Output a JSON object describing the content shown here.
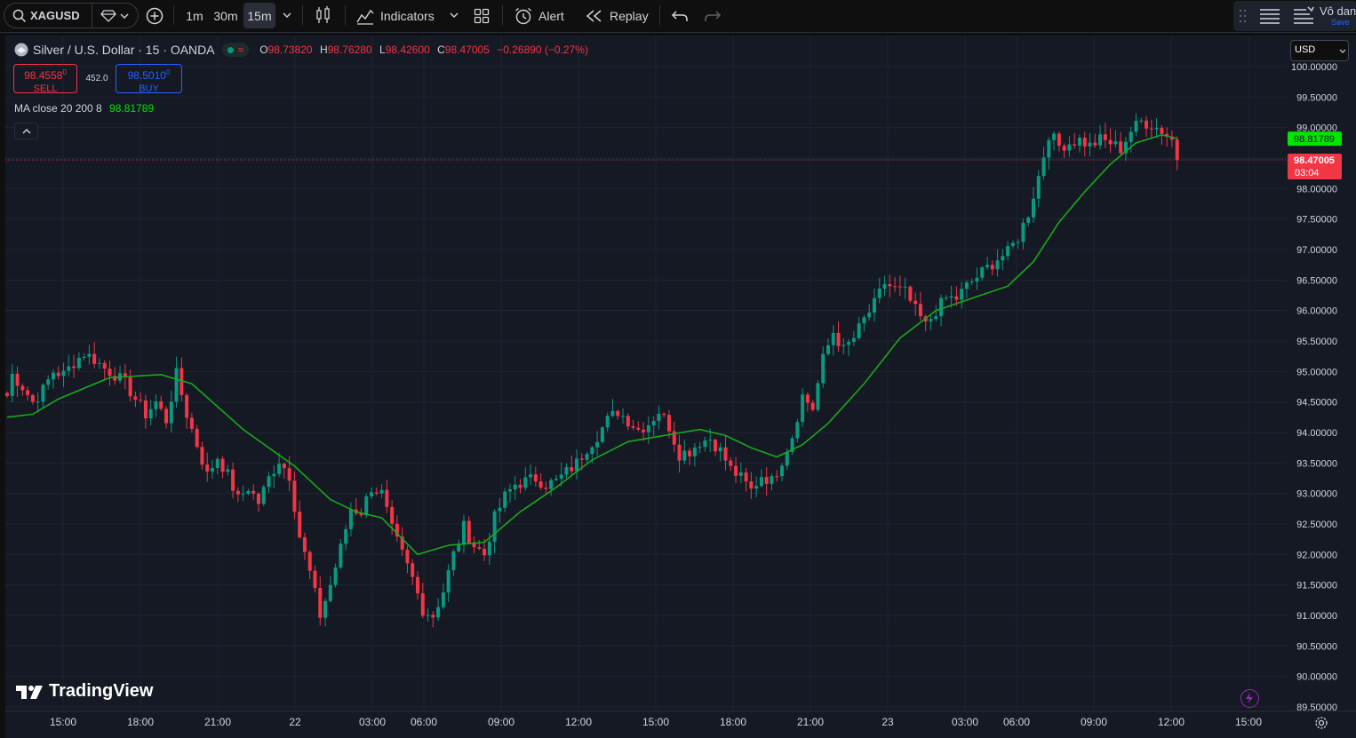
{
  "toolbar": {
    "symbol": "XAGUSD",
    "intervals": [
      "1m",
      "30m",
      "15m"
    ],
    "indicators_label": "Indicators",
    "alert_label": "Alert",
    "replay_label": "Replay",
    "account_name": "Vô dan",
    "save_label": "Save"
  },
  "legend": {
    "title": "Silver / U.S. Dollar · 15 · OANDA",
    "o_label": "O",
    "o_value": "98.73820",
    "h_label": "H",
    "h_value": "98.76280",
    "l_label": "L",
    "l_value": "98.42600",
    "c_label": "C",
    "c_value": "98.47005",
    "change": "−0.26890 (−0.27%)",
    "sell_price": "98.4558",
    "sell_price_sup": "0",
    "sell_label": "SELL",
    "spread": "452.0",
    "buy_price": "98.5010",
    "buy_price_sup": "0",
    "buy_label": "BUY",
    "ma_label": "MA close 20 200 8",
    "ma_value": "98.81789"
  },
  "currency": "USD",
  "logo_text": "TradingView",
  "colors": {
    "up": "#089981",
    "down": "#f23645",
    "ma": "#19a81b",
    "background": "#151924"
  },
  "chart_data": {
    "type": "candlestick",
    "ylim": [
      89.5,
      100.0
    ],
    "yticks": [
      "100.00000",
      "99.50000",
      "99.00000",
      "98.50000",
      "98.00000",
      "97.50000",
      "97.00000",
      "96.50000",
      "96.00000",
      "95.50000",
      "95.00000",
      "94.50000",
      "94.00000",
      "93.50000",
      "93.00000",
      "92.50000",
      "92.00000",
      "91.50000",
      "91.00000",
      "90.50000",
      "90.00000",
      "89.50000"
    ],
    "xticks": [
      "15:00",
      "18:00",
      "21:00",
      "22",
      "03:00",
      "06:00",
      "09:00",
      "12:00",
      "15:00",
      "18:00",
      "21:00",
      "23",
      "03:00",
      "06:00",
      "09:00",
      "12:00",
      "15:00"
    ],
    "last_price": "98.47005",
    "countdown": "03:04",
    "ma_last": "98.81789",
    "price_path": [
      [
        0,
        94.6
      ],
      [
        1,
        94.95
      ],
      [
        3,
        94.75
      ],
      [
        5,
        94.5
      ],
      [
        7,
        94.7
      ],
      [
        9,
        95.0
      ],
      [
        11,
        94.95
      ],
      [
        13,
        95.15
      ],
      [
        15,
        95.3
      ],
      [
        17,
        95.2
      ],
      [
        19,
        95.05
      ],
      [
        21,
        94.95
      ],
      [
        23,
        94.8
      ],
      [
        25,
        94.55
      ],
      [
        27,
        94.3
      ],
      [
        29,
        94.5
      ],
      [
        31,
        94.2
      ],
      [
        33,
        94.95
      ],
      [
        35,
        94.3
      ],
      [
        37,
        93.8
      ],
      [
        39,
        93.3
      ],
      [
        41,
        93.6
      ],
      [
        43,
        93.3
      ],
      [
        45,
        92.9
      ],
      [
        47,
        93.1
      ],
      [
        49,
        92.85
      ],
      [
        51,
        93.25
      ],
      [
        53,
        93.55
      ],
      [
        55,
        93.3
      ],
      [
        57,
        92.3
      ],
      [
        59,
        91.7
      ],
      [
        61,
        91.0
      ],
      [
        63,
        91.5
      ],
      [
        65,
        92.1
      ],
      [
        67,
        92.75
      ],
      [
        69,
        92.7
      ],
      [
        71,
        93.1
      ],
      [
        73,
        93.0
      ],
      [
        75,
        92.4
      ],
      [
        77,
        92.0
      ],
      [
        79,
        91.6
      ],
      [
        81,
        91.1
      ],
      [
        83,
        91.0
      ],
      [
        85,
        91.4
      ],
      [
        87,
        92.0
      ],
      [
        89,
        92.45
      ],
      [
        91,
        92.15
      ],
      [
        93,
        92.0
      ],
      [
        95,
        92.6
      ],
      [
        97,
        92.95
      ],
      [
        99,
        93.15
      ],
      [
        101,
        93.2
      ],
      [
        103,
        93.25
      ],
      [
        105,
        93.15
      ],
      [
        107,
        93.2
      ],
      [
        109,
        93.35
      ],
      [
        111,
        93.5
      ],
      [
        113,
        93.75
      ],
      [
        115,
        93.95
      ],
      [
        117,
        94.2
      ],
      [
        119,
        94.35
      ],
      [
        121,
        94.2
      ],
      [
        123,
        94.05
      ],
      [
        125,
        94.15
      ],
      [
        127,
        94.35
      ],
      [
        129,
        94.1
      ],
      [
        131,
        93.65
      ],
      [
        133,
        93.7
      ],
      [
        135,
        93.85
      ],
      [
        137,
        93.9
      ],
      [
        139,
        93.7
      ],
      [
        141,
        93.4
      ],
      [
        143,
        93.25
      ],
      [
        145,
        93.05
      ],
      [
        147,
        93.3
      ],
      [
        149,
        93.2
      ],
      [
        151,
        93.55
      ],
      [
        153,
        93.95
      ],
      [
        155,
        94.6
      ],
      [
        157,
        94.4
      ],
      [
        159,
        95.2
      ],
      [
        161,
        95.65
      ],
      [
        163,
        95.35
      ],
      [
        165,
        95.55
      ],
      [
        167,
        95.85
      ],
      [
        169,
        96.1
      ],
      [
        171,
        96.45
      ],
      [
        173,
        96.35
      ],
      [
        175,
        96.3
      ],
      [
        177,
        96.0
      ],
      [
        179,
        95.75
      ],
      [
        181,
        96.0
      ],
      [
        183,
        96.2
      ],
      [
        185,
        96.2
      ],
      [
        187,
        96.4
      ],
      [
        189,
        96.55
      ],
      [
        191,
        96.7
      ],
      [
        193,
        96.85
      ],
      [
        195,
        96.95
      ],
      [
        197,
        97.2
      ],
      [
        199,
        97.6
      ],
      [
        201,
        98.2
      ],
      [
        203,
        98.9
      ],
      [
        205,
        98.7
      ],
      [
        207,
        98.75
      ],
      [
        209,
        98.8
      ],
      [
        211,
        98.7
      ],
      [
        213,
        98.8
      ],
      [
        215,
        98.75
      ],
      [
        217,
        98.65
      ],
      [
        219,
        98.95
      ],
      [
        221,
        99.1
      ],
      [
        223,
        99.05
      ],
      [
        225,
        98.95
      ],
      [
        227,
        98.8
      ],
      [
        228,
        98.47
      ]
    ],
    "ma_path": [
      [
        0,
        94.25
      ],
      [
        5,
        94.3
      ],
      [
        10,
        94.55
      ],
      [
        20,
        94.9
      ],
      [
        30,
        94.95
      ],
      [
        36,
        94.8
      ],
      [
        46,
        94.05
      ],
      [
        56,
        93.45
      ],
      [
        63,
        92.9
      ],
      [
        68,
        92.7
      ],
      [
        73,
        92.6
      ],
      [
        80,
        92.0
      ],
      [
        86,
        92.15
      ],
      [
        93,
        92.2
      ],
      [
        100,
        92.7
      ],
      [
        107,
        93.1
      ],
      [
        114,
        93.55
      ],
      [
        121,
        93.85
      ],
      [
        128,
        93.95
      ],
      [
        135,
        94.05
      ],
      [
        140,
        93.95
      ],
      [
        145,
        93.75
      ],
      [
        150,
        93.6
      ],
      [
        155,
        93.8
      ],
      [
        160,
        94.15
      ],
      [
        167,
        94.8
      ],
      [
        174,
        95.55
      ],
      [
        181,
        96.0
      ],
      [
        188,
        96.2
      ],
      [
        195,
        96.4
      ],
      [
        200,
        96.8
      ],
      [
        205,
        97.45
      ],
      [
        210,
        97.95
      ],
      [
        215,
        98.4
      ],
      [
        220,
        98.75
      ],
      [
        225,
        98.88
      ],
      [
        228,
        98.82
      ]
    ]
  }
}
